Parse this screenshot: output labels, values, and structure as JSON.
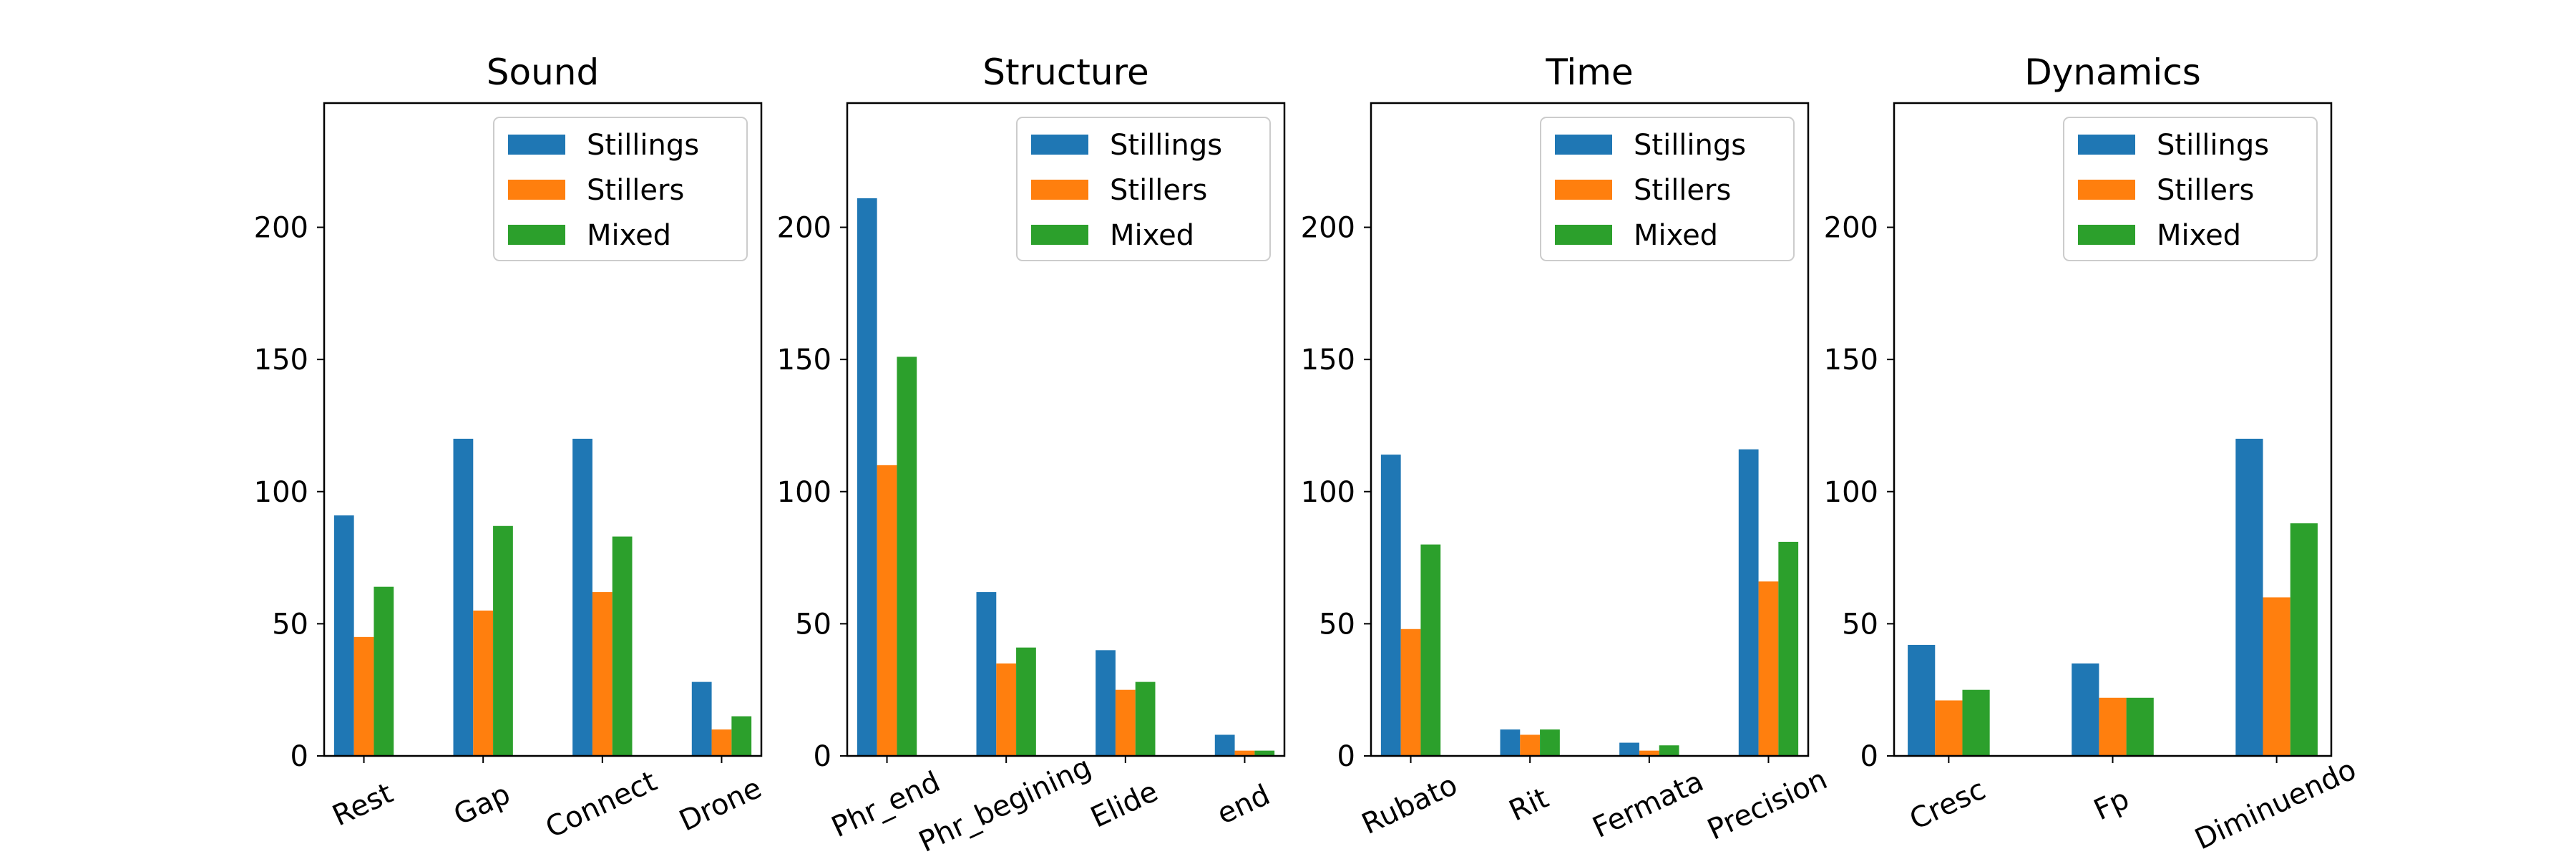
{
  "colors": {
    "Stillings": "#1f77b4",
    "Stillers": "#ff7f0e",
    "Mixed": "#2ca02c"
  },
  "chart_data": [
    {
      "type": "bar",
      "title": "Sound",
      "categories": [
        "Rest",
        "Gap",
        "Connect",
        "Drone"
      ],
      "series": [
        {
          "name": "Stillings",
          "values": [
            91,
            120,
            120,
            28
          ]
        },
        {
          "name": "Stillers",
          "values": [
            45,
            55,
            62,
            10
          ]
        },
        {
          "name": "Mixed",
          "values": [
            64,
            87,
            83,
            15
          ]
        }
      ],
      "ylim": [
        0,
        247
      ],
      "yticks": [
        "0",
        "50",
        "100",
        "150",
        "200"
      ],
      "legend": "upper right",
      "grid": false
    },
    {
      "type": "bar",
      "title": "Structure",
      "categories": [
        "Phr_end",
        "Phr_begining",
        "Elide",
        "end"
      ],
      "series": [
        {
          "name": "Stillings",
          "values": [
            211,
            62,
            40,
            8
          ]
        },
        {
          "name": "Stillers",
          "values": [
            110,
            35,
            25,
            2
          ]
        },
        {
          "name": "Mixed",
          "values": [
            151,
            41,
            28,
            2
          ]
        }
      ],
      "ylim": [
        0,
        247
      ],
      "yticks": [
        "0",
        "50",
        "100",
        "150",
        "200"
      ],
      "legend": "upper right",
      "grid": false
    },
    {
      "type": "bar",
      "title": "Time",
      "categories": [
        "Rubato",
        "Rit",
        "Fermata",
        "Precision"
      ],
      "series": [
        {
          "name": "Stillings",
          "values": [
            114,
            10,
            5,
            116
          ]
        },
        {
          "name": "Stillers",
          "values": [
            48,
            8,
            2,
            66
          ]
        },
        {
          "name": "Mixed",
          "values": [
            80,
            10,
            4,
            81
          ]
        }
      ],
      "ylim": [
        0,
        247
      ],
      "yticks": [
        "0",
        "50",
        "100",
        "150",
        "200"
      ],
      "legend": "upper right",
      "grid": false
    },
    {
      "type": "bar",
      "title": "Dynamics",
      "categories": [
        "Cresc",
        "Fp",
        "Diminuendo"
      ],
      "series": [
        {
          "name": "Stillings",
          "values": [
            42,
            35,
            120
          ]
        },
        {
          "name": "Stillers",
          "values": [
            21,
            22,
            60
          ]
        },
        {
          "name": "Mixed",
          "values": [
            25,
            22,
            88
          ]
        }
      ],
      "ylim": [
        0,
        247
      ],
      "yticks": [
        "0",
        "50",
        "100",
        "150",
        "200"
      ],
      "legend": "upper right",
      "grid": false
    }
  ]
}
